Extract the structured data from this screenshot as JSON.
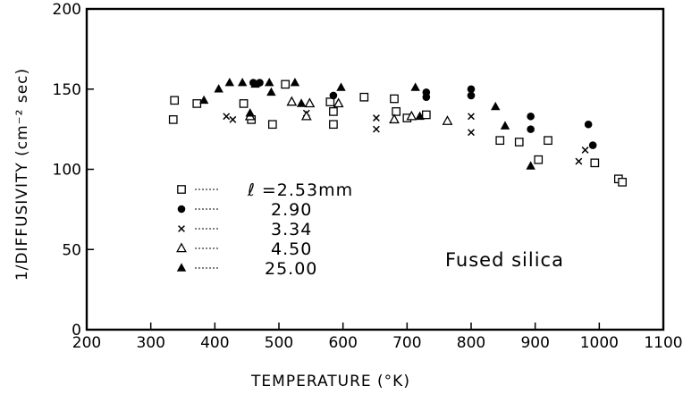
{
  "chart_data": {
    "type": "scatter",
    "title": "",
    "xlabel": "TEMPERATURE  (°K)",
    "ylabel": "1/DIFFUSIVITY  (cm⁻² sec)",
    "xlim": [
      200,
      1100
    ],
    "ylim": [
      0,
      200
    ],
    "xticks": [
      "200",
      "300",
      "400",
      "500",
      "600",
      "700",
      "800",
      "900",
      "1000",
      "1100"
    ],
    "yticks": [
      "0",
      "50",
      "100",
      "150",
      "200"
    ],
    "grid": false,
    "legend_position": "left-center",
    "annotation": "Fused silica",
    "series": [
      {
        "name": "ℓ =2.53mm",
        "marker": "open-square",
        "points": [
          [
            335,
            131
          ],
          [
            337,
            143
          ],
          [
            372,
            141
          ],
          [
            445,
            141
          ],
          [
            457,
            131
          ],
          [
            490,
            128
          ],
          [
            510,
            153
          ],
          [
            580,
            142
          ],
          [
            585,
            128
          ],
          [
            585,
            136
          ],
          [
            633,
            145
          ],
          [
            680,
            144
          ],
          [
            683,
            136
          ],
          [
            700,
            132
          ],
          [
            730,
            134
          ],
          [
            845,
            118
          ],
          [
            875,
            117
          ],
          [
            905,
            106
          ],
          [
            920,
            118
          ],
          [
            993,
            104
          ],
          [
            1030,
            94
          ],
          [
            1036,
            92
          ]
        ]
      },
      {
        "name": "2.90",
        "marker": "filled-circle",
        "points": [
          [
            460,
            154
          ],
          [
            470,
            154
          ],
          [
            585,
            146
          ],
          [
            730,
            145
          ],
          [
            730,
            148
          ],
          [
            800,
            146
          ],
          [
            800,
            150
          ],
          [
            893,
            133
          ],
          [
            893,
            125
          ],
          [
            983,
            128
          ],
          [
            990,
            115
          ]
        ]
      },
      {
        "name": "3.34",
        "marker": "x",
        "points": [
          [
            418,
            133
          ],
          [
            428,
            131
          ],
          [
            543,
            135
          ],
          [
            652,
            132
          ],
          [
            652,
            125
          ],
          [
            800,
            133
          ],
          [
            800,
            123
          ],
          [
            968,
            105
          ],
          [
            978,
            112
          ]
        ]
      },
      {
        "name": "4.50",
        "marker": "open-triangle",
        "points": [
          [
            455,
            133
          ],
          [
            520,
            142
          ],
          [
            543,
            133
          ],
          [
            548,
            141
          ],
          [
            593,
            141
          ],
          [
            680,
            131
          ],
          [
            707,
            133
          ],
          [
            763,
            130
          ]
        ]
      },
      {
        "name": "25.00",
        "marker": "filled-triangle",
        "points": [
          [
            383,
            143
          ],
          [
            406,
            150
          ],
          [
            423,
            154
          ],
          [
            443,
            154
          ],
          [
            455,
            135
          ],
          [
            463,
            153
          ],
          [
            485,
            154
          ],
          [
            488,
            148
          ],
          [
            525,
            154
          ],
          [
            535,
            141
          ],
          [
            597,
            151
          ],
          [
            713,
            151
          ],
          [
            720,
            133
          ],
          [
            838,
            139
          ],
          [
            853,
            127
          ],
          [
            893,
            102
          ]
        ]
      }
    ]
  }
}
